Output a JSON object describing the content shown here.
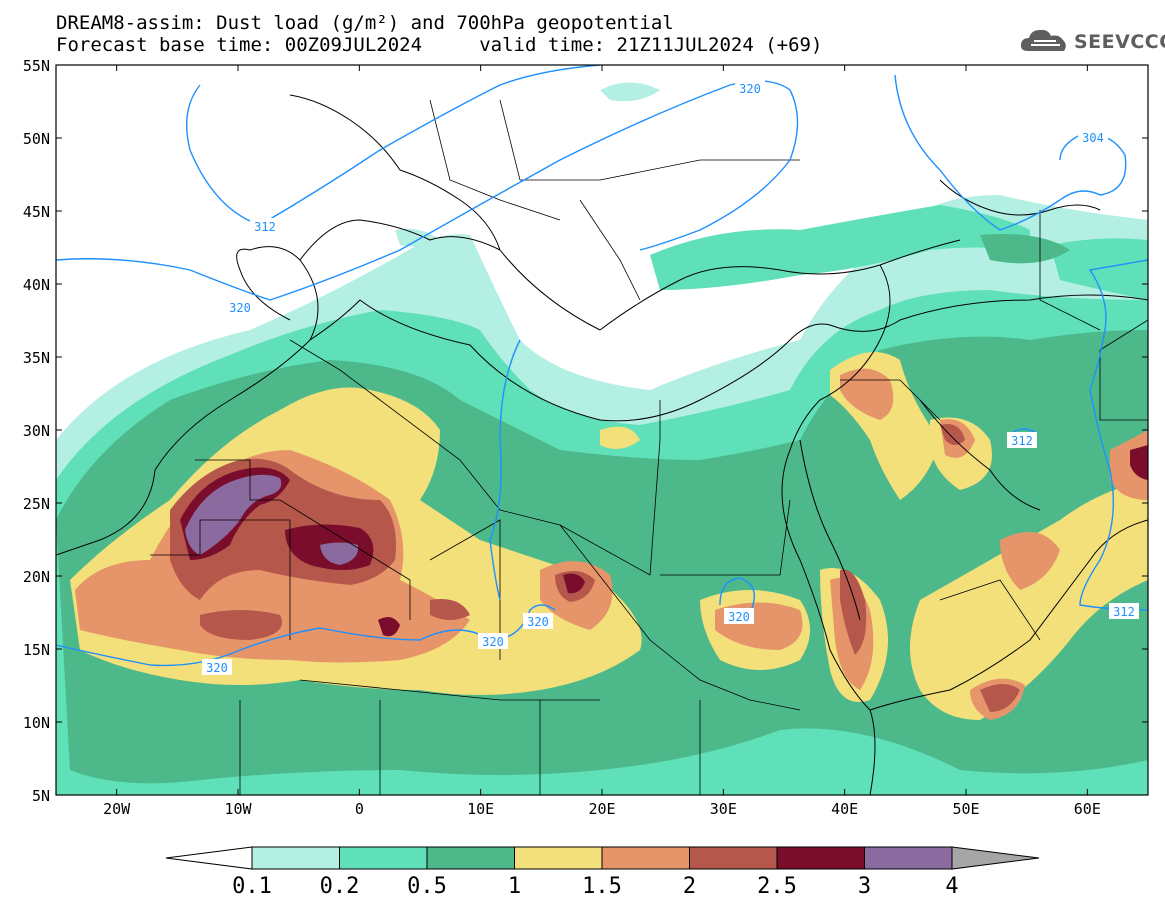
{
  "header": {
    "title_line1": "DREAM8-assim: Dust load (g/m²) and 700hPa geopotential",
    "title_line2": "Forecast base time: 00Z09JUL2024     valid time: 21Z11JUL2024 (+69)"
  },
  "logo": {
    "icon": "cloud-icon",
    "text": "SEEVCCC",
    "color": "#5e5e5e"
  },
  "map": {
    "lon_range": [
      -25,
      65
    ],
    "lat_range": [
      5,
      55
    ],
    "lat_labels": [
      "55N",
      "50N",
      "45N",
      "40N",
      "35N",
      "30N",
      "25N",
      "20N",
      "15N",
      "10N",
      "5N"
    ],
    "lon_labels": [
      "20W",
      "10W",
      "0",
      "10E",
      "20E",
      "30E",
      "40E",
      "50E",
      "60E"
    ],
    "contour_color": "#1e90ff",
    "contour_labels": [
      "320",
      "312",
      "320",
      "304",
      "312",
      "320",
      "320",
      "320",
      "320",
      "312"
    ]
  },
  "colorbar": {
    "ticks": [
      "0.1",
      "0.2",
      "0.5",
      "1",
      "1.5",
      "2",
      "2.5",
      "3",
      "4"
    ],
    "colors": [
      "#b4efe3",
      "#5fe0b8",
      "#4db98b",
      "#f3e07a",
      "#e6946a",
      "#b5584b",
      "#7a0d2c",
      "#8b6a9f"
    ],
    "under_color": "#ffffff",
    "over_color": "#a6a6a6"
  }
}
